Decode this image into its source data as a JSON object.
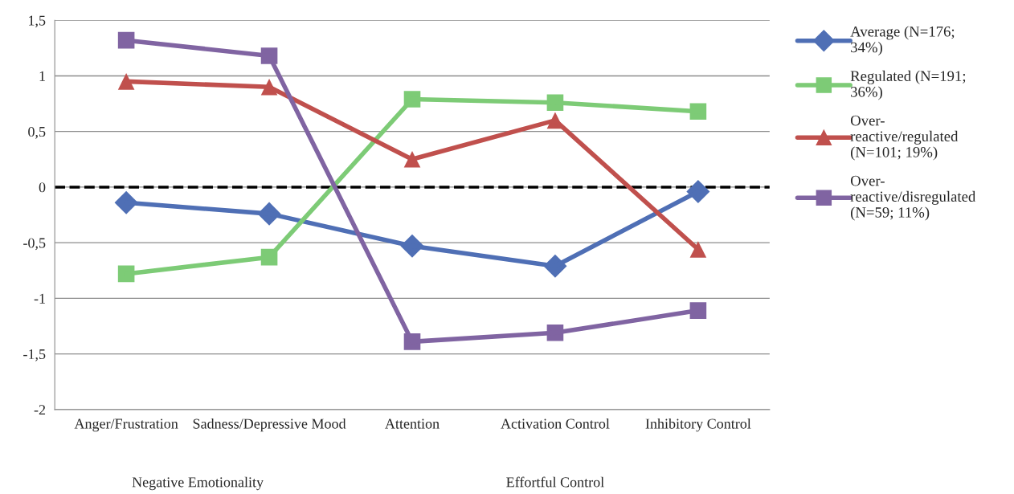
{
  "chart_data": {
    "type": "line",
    "categories": [
      "Anger/Frustration",
      "Sadness/Depressive Mood",
      "Attention",
      "Activation Control",
      "Inhibitory Control"
    ],
    "series": [
      {
        "name": "Average (N=176;\n34%)",
        "color": "#4f6fb5",
        "marker": "diamond",
        "values": [
          -0.14,
          -0.24,
          -0.53,
          -0.71,
          -0.04
        ]
      },
      {
        "name": "Regulated (N=191;\n36%)",
        "color": "#7dcb76",
        "marker": "square",
        "values": [
          -0.78,
          -0.63,
          0.79,
          0.76,
          0.68
        ]
      },
      {
        "name": "Over-\nreactive/regulated\n(N=101; 19%)",
        "color": "#c0504d",
        "marker": "triangle",
        "values": [
          0.95,
          0.9,
          0.25,
          0.6,
          -0.56
        ]
      },
      {
        "name": "Over-\nreactive/disregulated\n(N=59; 11%)",
        "color": "#8064a2",
        "marker": "square",
        "values": [
          1.32,
          1.18,
          -1.39,
          -1.31,
          -1.11
        ]
      }
    ],
    "ylim": [
      -2,
      1.5
    ],
    "yticks": [
      {
        "value": -2,
        "label": "-2"
      },
      {
        "value": -1.5,
        "label": "-1,5"
      },
      {
        "value": -1,
        "label": "-1"
      },
      {
        "value": -0.5,
        "label": "-0,5"
      },
      {
        "value": 0,
        "label": "0"
      },
      {
        "value": 0.5,
        "label": "0,5"
      },
      {
        "value": 1,
        "label": "1"
      },
      {
        "value": 1.5,
        "label": "1,5"
      }
    ],
    "grid": "y",
    "legend": "right",
    "line_style": "solid",
    "ref_lines": [
      {
        "axis": "y",
        "value": 0,
        "color": "#000000",
        "line_style": "dashed"
      }
    ],
    "annotations": [
      "Negative Emotionality",
      "Effortful Control"
    ]
  }
}
